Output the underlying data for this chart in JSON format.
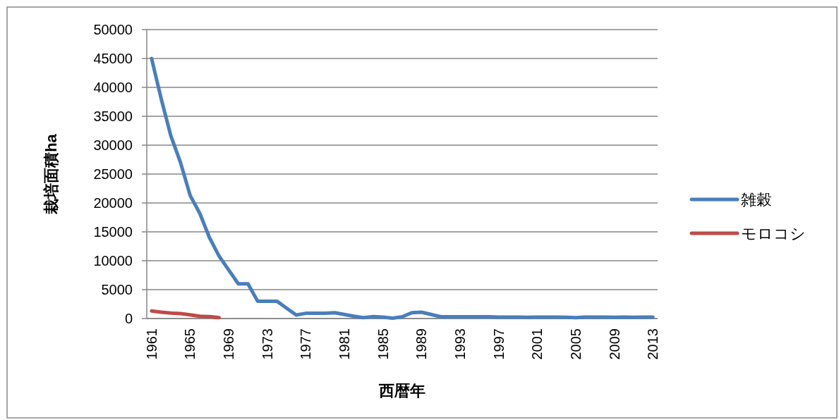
{
  "chart_data": {
    "type": "line",
    "xlabel": "西暦年",
    "ylabel": "栽培面積ha",
    "categories": [
      "1961",
      null,
      null,
      null,
      "1965",
      null,
      null,
      null,
      "1969",
      null,
      null,
      null,
      "1973",
      null,
      null,
      null,
      "1977",
      null,
      null,
      null,
      "1981",
      null,
      null,
      null,
      "1985",
      null,
      null,
      null,
      "1989",
      null,
      null,
      null,
      "1993",
      null,
      null,
      null,
      "1997",
      null,
      null,
      null,
      "2001",
      null,
      null,
      null,
      "2005",
      null,
      null,
      null,
      "2009",
      null,
      null,
      null,
      "2013"
    ],
    "series": [
      {
        "name": "雑穀",
        "color": "#4a7ebb",
        "values": [
          45000,
          38000,
          31600,
          27000,
          21300,
          18200,
          14000,
          10800,
          8400,
          6000,
          6000,
          3000,
          3000,
          3000,
          1800,
          600,
          900,
          900,
          900,
          1000,
          700,
          400,
          150,
          350,
          250,
          50,
          300,
          1000,
          1100,
          700,
          300,
          300,
          300,
          300,
          300,
          300,
          250,
          250,
          250,
          200,
          250,
          250,
          250,
          200,
          150,
          250,
          250,
          250,
          200,
          250,
          200,
          250,
          250
        ]
      },
      {
        "name": "モロコシ",
        "color": "#be4b48",
        "values": [
          1300,
          1100,
          950,
          850,
          650,
          400,
          350,
          150,
          null,
          null,
          null,
          null,
          null,
          null,
          null,
          null,
          null,
          null,
          null,
          null,
          null,
          null,
          null,
          null,
          null,
          null,
          null,
          null,
          null,
          null,
          null,
          null,
          null,
          null,
          null,
          null,
          null,
          null,
          null,
          null,
          null,
          null,
          null,
          null,
          null,
          null,
          null,
          null,
          null,
          null,
          null,
          null,
          null
        ]
      }
    ],
    "ylim": [
      0,
      50000
    ],
    "yticks": [
      0,
      5000,
      10000,
      15000,
      20000,
      25000,
      30000,
      35000,
      40000,
      45000,
      50000
    ],
    "grid": "y",
    "legend": "right"
  }
}
